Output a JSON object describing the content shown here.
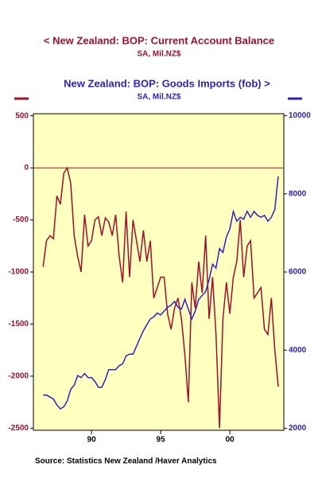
{
  "chart_data": {
    "type": "line",
    "source": "Source:  Statistics New Zealand /Haver Analytics",
    "x": [
      1986.5,
      1986.75,
      1987,
      1987.25,
      1987.5,
      1987.75,
      1988,
      1988.25,
      1988.5,
      1988.75,
      1989,
      1989.25,
      1989.5,
      1989.75,
      1990,
      1990.25,
      1990.5,
      1990.75,
      1991,
      1991.25,
      1991.5,
      1991.75,
      1992,
      1992.25,
      1992.5,
      1992.75,
      1993,
      1993.25,
      1993.5,
      1993.75,
      1994,
      1994.25,
      1994.5,
      1994.75,
      1995,
      1995.25,
      1995.5,
      1995.75,
      1996,
      1996.25,
      1996.5,
      1996.75,
      1997,
      1997.25,
      1997.5,
      1997.75,
      1998,
      1998.25,
      1998.5,
      1998.75,
      1999,
      1999.25,
      1999.5,
      1999.75,
      2000,
      2000.25,
      2000.5,
      2000.75,
      2001,
      2001.25,
      2001.5,
      2001.75,
      2002,
      2002.25,
      2002.5,
      2002.75,
      2003,
      2003.25,
      2003.5
    ],
    "series": [
      {
        "name": "< New Zealand: BOP: Current Account Balance",
        "units": "SA, Mil.NZ$",
        "color": "#a0102a",
        "axis": "y",
        "values": [
          -950,
          -700,
          -650,
          -680,
          -270,
          -350,
          -50,
          0,
          -150,
          -650,
          -850,
          -1000,
          -450,
          -750,
          -700,
          -500,
          -470,
          -650,
          -480,
          -520,
          -650,
          -450,
          -850,
          -1100,
          -420,
          -1050,
          -500,
          -700,
          -900,
          -600,
          -900,
          -700,
          -1250,
          -1150,
          -1050,
          -1050,
          -1400,
          -1550,
          -1350,
          -1250,
          -1450,
          -1800,
          -2250,
          -1100,
          -1350,
          -900,
          -1200,
          -650,
          -1450,
          -1050,
          -1600,
          -2500,
          -1450,
          -1100,
          -1400,
          -1050,
          -900,
          -500,
          -1050,
          -750,
          -700,
          -1250,
          -1200,
          -1150,
          -1550,
          -1600,
          -1250,
          -1750,
          -2100
        ]
      },
      {
        "name": "New Zealand: BOP: Goods Imports (fob) >",
        "units": "SA, Mil.NZ$",
        "color": "#3020c0",
        "axis": "y2",
        "values": [
          2850,
          2850,
          2800,
          2750,
          2600,
          2500,
          2550,
          2700,
          3000,
          3100,
          3350,
          3300,
          3400,
          3300,
          3300,
          3200,
          3050,
          3050,
          3250,
          3500,
          3500,
          3500,
          3600,
          3650,
          3850,
          3900,
          3900,
          4100,
          4300,
          4500,
          4650,
          4800,
          4850,
          4950,
          4900,
          5000,
          5100,
          5150,
          5250,
          5100,
          5050,
          5300,
          5050,
          4800,
          5000,
          5300,
          5400,
          5500,
          5800,
          6200,
          6100,
          6600,
          6500,
          6900,
          7100,
          7550,
          7300,
          7400,
          7350,
          7550,
          7400,
          7550,
          7450,
          7400,
          7450,
          7300,
          7400,
          7600,
          8450
        ]
      }
    ],
    "xlim": [
      1985.8,
      2003.9
    ],
    "xticks": [
      {
        "value": 1990,
        "label": "90"
      },
      {
        "value": 1995,
        "label": "95"
      },
      {
        "value": 2000,
        "label": "00"
      }
    ],
    "ylim": [
      -2520,
      520
    ],
    "yticks": [
      500,
      0,
      -500,
      -1000,
      -1500,
      -2000,
      -2500
    ],
    "y2lim": [
      1950,
      10050
    ],
    "y2ticks": [
      2000,
      4000,
      6000,
      8000,
      10000
    ],
    "hline": {
      "value": 0,
      "color": "#a0102a"
    },
    "plot_background": "#ffffc0"
  }
}
